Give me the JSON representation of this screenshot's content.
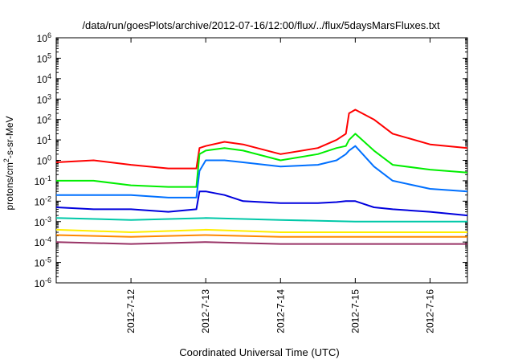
{
  "chart_data": {
    "type": "line",
    "title": "/data/run/goesPlots/archive/2012-07-16/12:00/flux/../flux/5daysMarsFluxes.txt",
    "xlabel": "Coordinated Universal Time (UTC)",
    "ylabel_parts": {
      "pre": "protons/cm",
      "sup": "2",
      "post": "-s-sr-MeV"
    },
    "yscale": "log",
    "ylim_exp": [
      -6,
      6
    ],
    "y_tick_exponents": [
      -6,
      -5,
      -4,
      -3,
      -2,
      -1,
      0,
      1,
      2,
      3,
      4,
      5,
      6
    ],
    "x_range_days": [
      "2012-07-11T00:00",
      "2012-07-16T12:00"
    ],
    "x_tick_labels": [
      "2012-7-12",
      "2012-7-13",
      "2012-7-14",
      "2012-7-15",
      "2012-7-16"
    ],
    "x_tick_dates": [
      "2012-07-12T00:00",
      "2012-07-13T00:00",
      "2012-07-14T00:00",
      "2012-07-15T00:00",
      "2012-07-16T00:00"
    ],
    "grid": false,
    "series": [
      {
        "color": "#ff0000",
        "x": [
          "2012-07-11T00:00",
          "2012-07-11T12:00",
          "2012-07-12T00:00",
          "2012-07-12T12:00",
          "2012-07-12T21:00",
          "2012-07-12T22:00",
          "2012-07-13T00:00",
          "2012-07-13T06:00",
          "2012-07-13T12:00",
          "2012-07-14T00:00",
          "2012-07-14T12:00",
          "2012-07-14T18:00",
          "2012-07-14T21:00",
          "2012-07-14T22:00",
          "2012-07-15T00:00",
          "2012-07-15T06:00",
          "2012-07-15T12:00",
          "2012-07-16T00:00",
          "2012-07-16T12:00"
        ],
        "y": [
          0.8,
          1.0,
          0.6,
          0.4,
          0.4,
          4,
          5,
          8,
          6,
          2,
          4,
          10,
          20,
          200,
          300,
          100,
          20,
          6,
          4
        ]
      },
      {
        "color": "#00ee00",
        "x": [
          "2012-07-11T00:00",
          "2012-07-11T12:00",
          "2012-07-12T00:00",
          "2012-07-12T12:00",
          "2012-07-12T21:00",
          "2012-07-12T22:00",
          "2012-07-13T00:00",
          "2012-07-13T06:00",
          "2012-07-13T12:00",
          "2012-07-14T00:00",
          "2012-07-14T12:00",
          "2012-07-14T18:00",
          "2012-07-14T21:00",
          "2012-07-14T22:00",
          "2012-07-15T00:00",
          "2012-07-15T06:00",
          "2012-07-15T12:00",
          "2012-07-16T00:00",
          "2012-07-16T12:00"
        ],
        "y": [
          0.1,
          0.1,
          0.06,
          0.05,
          0.05,
          2,
          3,
          4,
          3,
          1,
          2,
          4,
          5,
          10,
          20,
          3,
          0.6,
          0.35,
          0.25
        ]
      },
      {
        "color": "#0070ff",
        "x": [
          "2012-07-11T00:00",
          "2012-07-11T12:00",
          "2012-07-12T00:00",
          "2012-07-12T12:00",
          "2012-07-12T21:00",
          "2012-07-12T22:00",
          "2012-07-13T00:00",
          "2012-07-13T06:00",
          "2012-07-13T12:00",
          "2012-07-14T00:00",
          "2012-07-14T12:00",
          "2012-07-14T18:00",
          "2012-07-14T21:00",
          "2012-07-14T22:00",
          "2012-07-15T00:00",
          "2012-07-15T06:00",
          "2012-07-15T12:00",
          "2012-07-16T00:00",
          "2012-07-16T12:00"
        ],
        "y": [
          0.02,
          0.02,
          0.02,
          0.015,
          0.015,
          0.3,
          1,
          1,
          0.8,
          0.5,
          0.6,
          1,
          2,
          3,
          5,
          0.5,
          0.1,
          0.04,
          0.03
        ]
      },
      {
        "color": "#0000dd",
        "x": [
          "2012-07-11T00:00",
          "2012-07-11T12:00",
          "2012-07-12T00:00",
          "2012-07-12T12:00",
          "2012-07-12T21:00",
          "2012-07-12T22:00",
          "2012-07-13T00:00",
          "2012-07-13T06:00",
          "2012-07-13T12:00",
          "2012-07-14T00:00",
          "2012-07-14T12:00",
          "2012-07-14T18:00",
          "2012-07-14T21:00",
          "2012-07-14T22:00",
          "2012-07-15T00:00",
          "2012-07-15T06:00",
          "2012-07-15T12:00",
          "2012-07-16T00:00",
          "2012-07-16T12:00"
        ],
        "y": [
          0.005,
          0.004,
          0.004,
          0.003,
          0.004,
          0.03,
          0.03,
          0.02,
          0.01,
          0.008,
          0.008,
          0.009,
          0.01,
          0.01,
          0.01,
          0.005,
          0.004,
          0.003,
          0.002
        ]
      },
      {
        "color": "#00c8a8",
        "x": [
          "2012-07-11T00:00",
          "2012-07-12T00:00",
          "2012-07-13T00:00",
          "2012-07-14T00:00",
          "2012-07-15T00:00",
          "2012-07-16T00:00",
          "2012-07-16T12:00"
        ],
        "y": [
          0.0015,
          0.0012,
          0.0015,
          0.0012,
          0.001,
          0.001,
          0.001
        ]
      },
      {
        "color": "#ffee00",
        "x": [
          "2012-07-11T00:00",
          "2012-07-12T00:00",
          "2012-07-13T00:00",
          "2012-07-14T00:00",
          "2012-07-15T00:00",
          "2012-07-16T00:00",
          "2012-07-16T12:00"
        ],
        "y": [
          0.0004,
          0.0003,
          0.0004,
          0.0003,
          0.0003,
          0.0003,
          0.0003
        ]
      },
      {
        "color": "#ff8800",
        "x": [
          "2012-07-11T00:00",
          "2012-07-12T00:00",
          "2012-07-13T00:00",
          "2012-07-14T00:00",
          "2012-07-15T00:00",
          "2012-07-16T00:00",
          "2012-07-16T12:00"
        ],
        "y": [
          0.00022,
          0.00018,
          0.00022,
          0.00018,
          0.00018,
          0.00018,
          0.00018
        ]
      },
      {
        "color": "#993366",
        "x": [
          "2012-07-11T00:00",
          "2012-07-12T00:00",
          "2012-07-13T00:00",
          "2012-07-14T00:00",
          "2012-07-15T00:00",
          "2012-07-16T00:00",
          "2012-07-16T12:00"
        ],
        "y": [
          0.0001,
          8e-05,
          0.0001,
          8e-05,
          8e-05,
          8e-05,
          8e-05
        ]
      }
    ]
  }
}
